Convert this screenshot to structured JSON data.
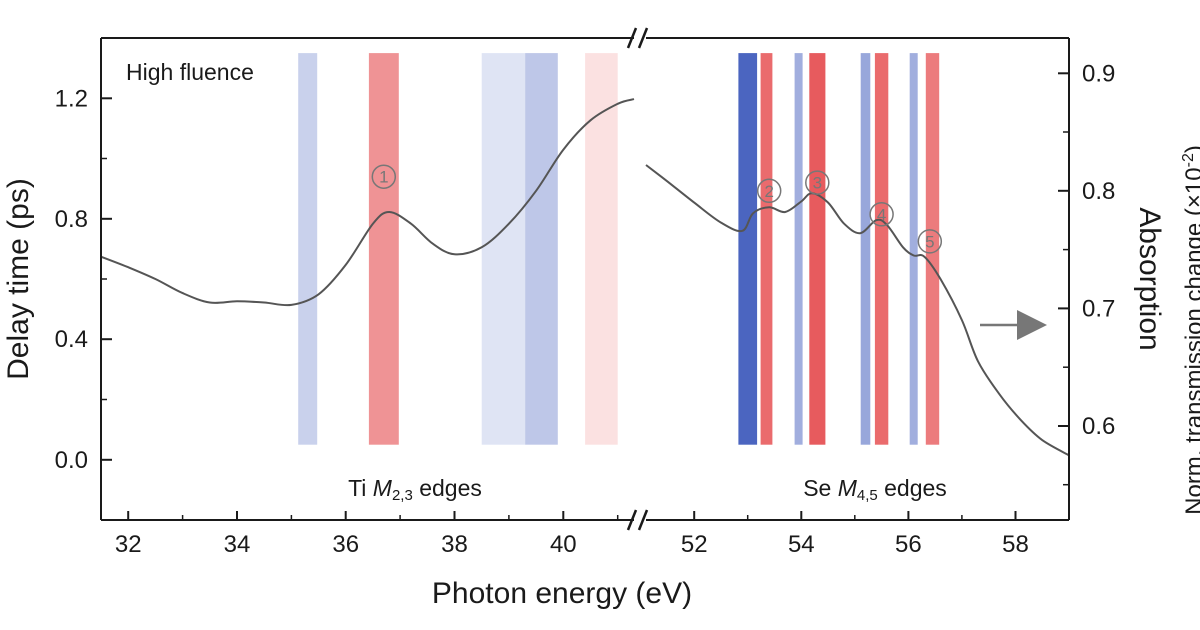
{
  "chart_data": {
    "type": "heatmap",
    "panel_label": "High fluence",
    "xlabel": "Photon energy (eV)",
    "ylabel": "Delay time (ps)",
    "y2label": "Absorption",
    "colorbar_label_partial": "Norm. transmission change (×10",
    "colorbar_label_exponent": "-2",
    "colorbar_label_tail": ")",
    "ylim": [
      -0.2,
      1.4
    ],
    "y2lim": [
      0.52,
      0.93
    ],
    "x_axis_break": true,
    "panels": [
      {
        "name": "Ti",
        "xlim": [
          31.5,
          41.3
        ],
        "xticks": [
          "32",
          "34",
          "36",
          "38",
          "40"
        ],
        "xtick_values": [
          32,
          34,
          36,
          38,
          40
        ],
        "edge_label_prefix": "Ti ",
        "edge_label_symbol": "M",
        "edge_label_subscript": "2,3",
        "edge_label_suffix": " edges",
        "stripes": [
          {
            "energy": 35.3,
            "width": 0.35,
            "amplitude": -0.25
          },
          {
            "energy": 36.7,
            "width": 0.55,
            "amplitude": 0.6
          },
          {
            "energy": 38.9,
            "width": 0.8,
            "amplitude": -0.12
          },
          {
            "energy": 39.6,
            "width": 0.6,
            "amplitude": -0.32
          },
          {
            "energy": 40.7,
            "width": 0.6,
            "amplitude": 0.12
          }
        ],
        "absorption": [
          [
            31.5,
            0.744
          ],
          [
            32.0,
            0.735
          ],
          [
            32.5,
            0.725
          ],
          [
            33.0,
            0.713
          ],
          [
            33.5,
            0.705
          ],
          [
            34.0,
            0.706
          ],
          [
            34.5,
            0.705
          ],
          [
            35.0,
            0.703
          ],
          [
            35.5,
            0.712
          ],
          [
            36.0,
            0.737
          ],
          [
            36.5,
            0.772
          ],
          [
            36.8,
            0.782
          ],
          [
            37.2,
            0.772
          ],
          [
            37.6,
            0.755
          ],
          [
            38.0,
            0.746
          ],
          [
            38.5,
            0.752
          ],
          [
            39.0,
            0.772
          ],
          [
            39.5,
            0.8
          ],
          [
            40.0,
            0.835
          ],
          [
            40.5,
            0.86
          ],
          [
            41.0,
            0.874
          ],
          [
            41.3,
            0.878
          ]
        ],
        "peaks": [
          {
            "label": "1",
            "energy": 36.7,
            "absorption": 0.812
          }
        ]
      },
      {
        "name": "Se",
        "xlim": [
          51.1,
          59.0
        ],
        "xticks": [
          "52",
          "54",
          "56",
          "58"
        ],
        "xtick_values": [
          52,
          54,
          56,
          58
        ],
        "edge_label_prefix": "Se ",
        "edge_label_symbol": "M",
        "edge_label_subscript": "4,5",
        "edge_label_suffix": " edges",
        "stripes": [
          {
            "energy": 53.0,
            "width": 0.35,
            "amplitude": -1.0
          },
          {
            "energy": 53.35,
            "width": 0.22,
            "amplitude": 0.85
          },
          {
            "energy": 53.95,
            "width": 0.15,
            "amplitude": -0.5
          },
          {
            "energy": 54.3,
            "width": 0.3,
            "amplitude": 0.95
          },
          {
            "energy": 55.2,
            "width": 0.18,
            "amplitude": -0.55
          },
          {
            "energy": 55.5,
            "width": 0.25,
            "amplitude": 0.85
          },
          {
            "energy": 56.1,
            "width": 0.15,
            "amplitude": -0.5
          },
          {
            "energy": 56.45,
            "width": 0.25,
            "amplitude": 0.75
          }
        ],
        "absorption": [
          [
            51.1,
            0.822
          ],
          [
            51.5,
            0.808
          ],
          [
            52.0,
            0.79
          ],
          [
            52.5,
            0.773
          ],
          [
            52.9,
            0.766
          ],
          [
            53.1,
            0.781
          ],
          [
            53.4,
            0.786
          ],
          [
            53.7,
            0.782
          ],
          [
            54.0,
            0.791
          ],
          [
            54.2,
            0.798
          ],
          [
            54.5,
            0.79
          ],
          [
            54.8,
            0.772
          ],
          [
            55.1,
            0.764
          ],
          [
            55.4,
            0.775
          ],
          [
            55.6,
            0.771
          ],
          [
            55.9,
            0.752
          ],
          [
            56.1,
            0.745
          ],
          [
            56.3,
            0.744
          ],
          [
            56.6,
            0.725
          ],
          [
            57.0,
            0.69
          ],
          [
            57.3,
            0.655
          ],
          [
            57.7,
            0.627
          ],
          [
            58.1,
            0.605
          ],
          [
            58.5,
            0.588
          ],
          [
            59.0,
            0.575
          ]
        ],
        "peaks": [
          {
            "label": "2",
            "energy": 53.4,
            "absorption": 0.8
          },
          {
            "label": "3",
            "energy": 54.3,
            "absorption": 0.807
          },
          {
            "label": "4",
            "energy": 55.5,
            "absorption": 0.78
          },
          {
            "label": "5",
            "energy": 56.4,
            "absorption": 0.757
          }
        ]
      }
    ],
    "ytick_labels": [
      "0.0",
      "0.4",
      "0.8",
      "1.2"
    ],
    "ytick_values": [
      0.0,
      0.4,
      0.8,
      1.2
    ],
    "y2tick_labels": [
      "0.6",
      "0.7",
      "0.8",
      "0.9"
    ],
    "y2tick_values": [
      0.6,
      0.7,
      0.8,
      0.9
    ],
    "signal_delay_range": [
      0.05,
      1.35
    ],
    "arrow_direction": "right",
    "colors": {
      "positive": "#e0282b",
      "negative": "#1e3fb0",
      "curve": "#555555",
      "axis": "#1a1a1a"
    }
  }
}
